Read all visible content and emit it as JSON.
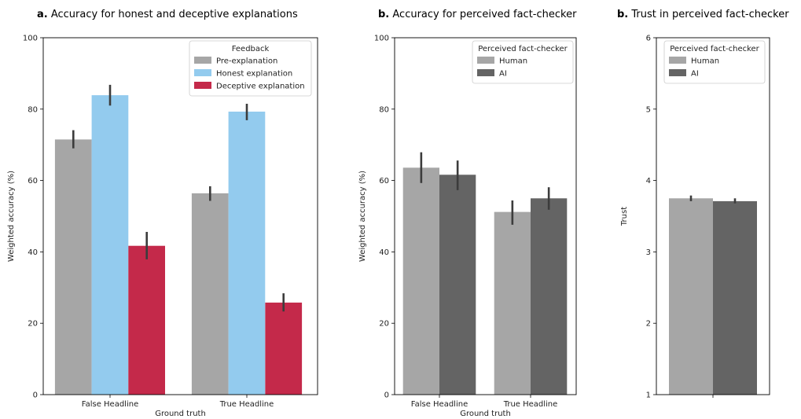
{
  "chart_data": [
    {
      "type": "bar",
      "panel_letter": "a.",
      "title": "Accuracy for honest and deceptive explanations",
      "xlabel": "Ground truth",
      "ylabel": "Weighted accuracy (%)",
      "ylim": [
        0,
        100
      ],
      "yticks": [
        0,
        20,
        40,
        60,
        80,
        100
      ],
      "categories": [
        "False Headline",
        "True Headline"
      ],
      "legend": {
        "title": "Feedback",
        "placement": "top-right"
      },
      "series": [
        {
          "name": "Pre-explanation",
          "color": "#a6a6a6",
          "values": [
            71.5,
            56.4
          ],
          "err_low": [
            69.0,
            54.3
          ],
          "err_high": [
            74.1,
            58.4
          ]
        },
        {
          "name": "Honest explanation",
          "color": "#93cbee",
          "values": [
            83.9,
            79.3
          ],
          "err_low": [
            81.0,
            76.9
          ],
          "err_high": [
            86.8,
            81.5
          ]
        },
        {
          "name": "Deceptive explanation",
          "color": "#c4294a",
          "values": [
            41.7,
            25.8
          ],
          "err_low": [
            37.9,
            23.3
          ],
          "err_high": [
            45.6,
            28.4
          ]
        }
      ]
    },
    {
      "type": "bar",
      "panel_letter": "b.",
      "title": "Accuracy for perceived fact-checker",
      "xlabel": "Ground truth",
      "ylabel": "Weighted accuracy (%)",
      "ylim": [
        0,
        100
      ],
      "yticks": [
        0,
        20,
        40,
        60,
        80,
        100
      ],
      "categories": [
        "False Headline",
        "True Headline"
      ],
      "legend": {
        "title": "Perceived fact-checker",
        "placement": "top-right"
      },
      "series": [
        {
          "name": "Human",
          "color": "#a6a6a6",
          "values": [
            63.6,
            51.2
          ],
          "err_low": [
            59.3,
            47.6
          ],
          "err_high": [
            67.9,
            54.4
          ]
        },
        {
          "name": "AI",
          "color": "#646464",
          "values": [
            61.6,
            55.0
          ],
          "err_low": [
            57.3,
            51.8
          ],
          "err_high": [
            65.6,
            58.1
          ]
        }
      ]
    },
    {
      "type": "bar",
      "panel_letter": "b.",
      "title": "Trust in perceived fact-checker",
      "xlabel": "",
      "ylabel": "Trust",
      "ylim": [
        1,
        6
      ],
      "yticks": [
        1,
        2,
        3,
        4,
        5,
        6
      ],
      "categories": [
        ""
      ],
      "legend": {
        "title": "Perceived fact-checker",
        "placement": "top-right"
      },
      "series": [
        {
          "name": "Human",
          "color": "#a6a6a6",
          "values": [
            3.75
          ],
          "err_low": [
            3.71
          ],
          "err_high": [
            3.79
          ]
        },
        {
          "name": "AI",
          "color": "#646464",
          "values": [
            3.71
          ],
          "err_low": [
            3.68
          ],
          "err_high": [
            3.75
          ]
        }
      ]
    }
  ]
}
